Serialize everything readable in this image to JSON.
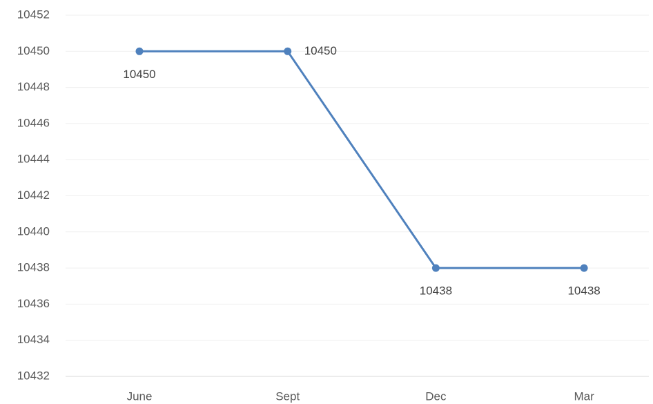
{
  "chart_data": {
    "type": "line",
    "categories": [
      "June",
      "Sept",
      "Dec",
      "Mar"
    ],
    "values": [
      10450,
      10450,
      10438,
      10438
    ],
    "color": "#4f81bd",
    "ylim": [
      10432,
      10452
    ],
    "yticks": [
      10432,
      10434,
      10436,
      10438,
      10440,
      10442,
      10444,
      10446,
      10448,
      10450,
      10452
    ],
    "grid": true,
    "data_labels": true
  }
}
